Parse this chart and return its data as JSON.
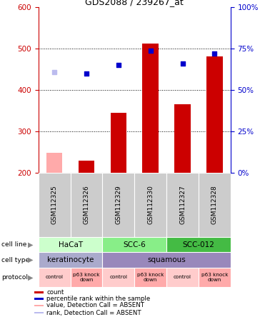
{
  "title": "GDS2088 / 239267_at",
  "samples": [
    "GSM112325",
    "GSM112326",
    "GSM112329",
    "GSM112330",
    "GSM112327",
    "GSM112328"
  ],
  "bar_values": [
    null,
    230,
    345,
    512,
    365,
    480
  ],
  "bar_absent": [
    248,
    null,
    null,
    null,
    null,
    null
  ],
  "rank_values": [
    null,
    440,
    460,
    495,
    463,
    487
  ],
  "rank_absent": [
    443,
    null,
    null,
    null,
    null,
    null
  ],
  "ylim_left": [
    200,
    600
  ],
  "ylim_right": [
    0,
    100
  ],
  "yticks_left": [
    200,
    300,
    400,
    500,
    600
  ],
  "yticks_right": [
    0,
    25,
    50,
    75,
    100
  ],
  "bar_color": "#cc0000",
  "bar_absent_color": "#ffaaaa",
  "rank_color": "#0000cc",
  "rank_absent_color": "#bbbbee",
  "cell_line_colors": {
    "HaCaT": "#ccffcc",
    "SCC-6": "#88ee88",
    "SCC-012": "#44bb44"
  },
  "cell_line_spans": {
    "HaCaT": [
      0,
      2
    ],
    "SCC-6": [
      2,
      4
    ],
    "SCC-012": [
      4,
      6
    ]
  },
  "cell_type_spans": {
    "keratinocyte": [
      0,
      2
    ],
    "squamous": [
      2,
      6
    ]
  },
  "cell_type_colors": {
    "keratinocyte": "#aaaacc",
    "squamous": "#9988bb"
  },
  "protocol_labels": [
    "control",
    "p63 knock\ndown",
    "control",
    "p63 knock\ndown",
    "control",
    "p63 knock\ndown"
  ],
  "protocol_color_control": "#ffcccc",
  "protocol_color_knockdown": "#ffaaaa",
  "sample_bg_color": "#cccccc",
  "left_axis_color": "#cc0000",
  "right_axis_color": "#0000cc",
  "legend_items": [
    {
      "label": "count",
      "color": "#cc0000"
    },
    {
      "label": "percentile rank within the sample",
      "color": "#0000cc"
    },
    {
      "label": "value, Detection Call = ABSENT",
      "color": "#ffaaaa"
    },
    {
      "label": "rank, Detection Call = ABSENT",
      "color": "#bbbbee"
    }
  ]
}
